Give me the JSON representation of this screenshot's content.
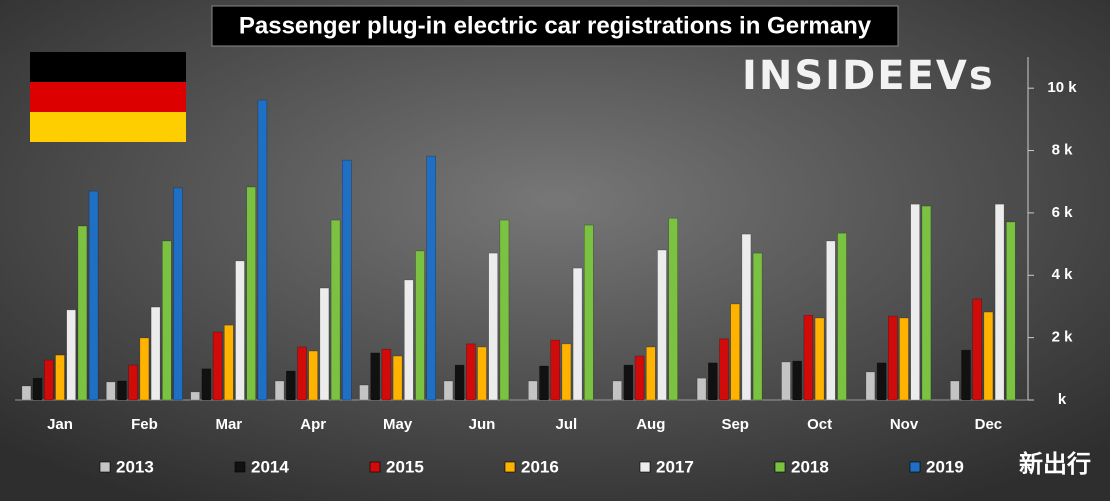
{
  "chart_data": {
    "type": "bar",
    "title": "Passenger plug-in electric car registrations in Germany",
    "logo_text": "INSIDEEVs",
    "watermark": "新出行",
    "categories": [
      "Jan",
      "Feb",
      "Mar",
      "Apr",
      "May",
      "Jun",
      "Jul",
      "Aug",
      "Sep",
      "Oct",
      "Nov",
      "Dec"
    ],
    "series": [
      {
        "name": "2013",
        "color": "#c4c4c4",
        "values": [
          450,
          580,
          260,
          610,
          480,
          610,
          610,
          610,
          700,
          1220,
          900,
          610
        ]
      },
      {
        "name": "2014",
        "color": "#111111",
        "values": [
          700,
          610,
          1000,
          930,
          1510,
          1120,
          1090,
          1120,
          1190,
          1250,
          1190,
          1600
        ]
      },
      {
        "name": "2015",
        "color": "#d10a0a",
        "values": [
          1280,
          1120,
          2180,
          1700,
          1630,
          1800,
          1920,
          1410,
          1960,
          2720,
          2690,
          3240
        ]
      },
      {
        "name": "2016",
        "color": "#ffb300",
        "values": [
          1440,
          1990,
          2400,
          1570,
          1410,
          1700,
          1800,
          1700,
          3080,
          2630,
          2630,
          2820
        ]
      },
      {
        "name": "2017",
        "color": "#ececec",
        "values": [
          2890,
          2980,
          4460,
          3590,
          3850,
          4710,
          4230,
          4810,
          5320,
          5100,
          6280,
          6280
        ]
      },
      {
        "name": "2018",
        "color": "#7cc242",
        "values": [
          5580,
          5100,
          6830,
          5770,
          4780,
          5770,
          5610,
          5830,
          4710,
          5350,
          6220,
          5710
        ]
      },
      {
        "name": "2019",
        "color": "#1f70c4",
        "values": [
          6700,
          6800,
          9620,
          7690,
          7820,
          null,
          null,
          null,
          null,
          null,
          null,
          null
        ]
      }
    ],
    "ylim": [
      0,
      11000
    ],
    "yticks": [
      {
        "value": 0,
        "label": "k"
      },
      {
        "value": 2000,
        "label": "2 k"
      },
      {
        "value": 4000,
        "label": "4 k"
      },
      {
        "value": 6000,
        "label": "6 k"
      },
      {
        "value": 8000,
        "label": "8 k"
      },
      {
        "value": 10000,
        "label": "10 k"
      }
    ],
    "grid": false
  }
}
